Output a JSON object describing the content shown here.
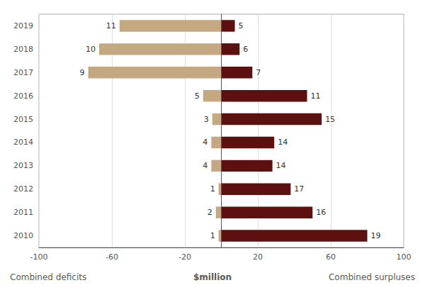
{
  "chart_data": {
    "type": "bar",
    "orientation": "horizontal",
    "categories": [
      "2019",
      "2018",
      "2017",
      "2016",
      "2015",
      "2014",
      "2013",
      "2012",
      "2011",
      "2010"
    ],
    "series": [
      {
        "name": "Combined deficits",
        "color": "#c4a882",
        "values": [
          -55.8,
          -67.0,
          -73.0,
          -10.0,
          -5.0,
          -5.5,
          -5.5,
          -1.5,
          -3.0,
          -1.5
        ],
        "counts": [
          11,
          10,
          9,
          5,
          3,
          4,
          4,
          1,
          2,
          1
        ]
      },
      {
        "name": "Combined surpluses",
        "color": "#5c1010",
        "values": [
          7.4,
          10.0,
          17.0,
          47.0,
          55.0,
          29.0,
          28.0,
          38.0,
          50.0,
          80.0
        ],
        "counts": [
          5,
          6,
          7,
          11,
          15,
          14,
          14,
          17,
          16,
          19
        ]
      }
    ],
    "xlabel": "$million",
    "xlim": [
      -100,
      100
    ],
    "xticks": [
      -100,
      -60,
      -20,
      20,
      60,
      100
    ],
    "grid": true,
    "legend": false
  }
}
